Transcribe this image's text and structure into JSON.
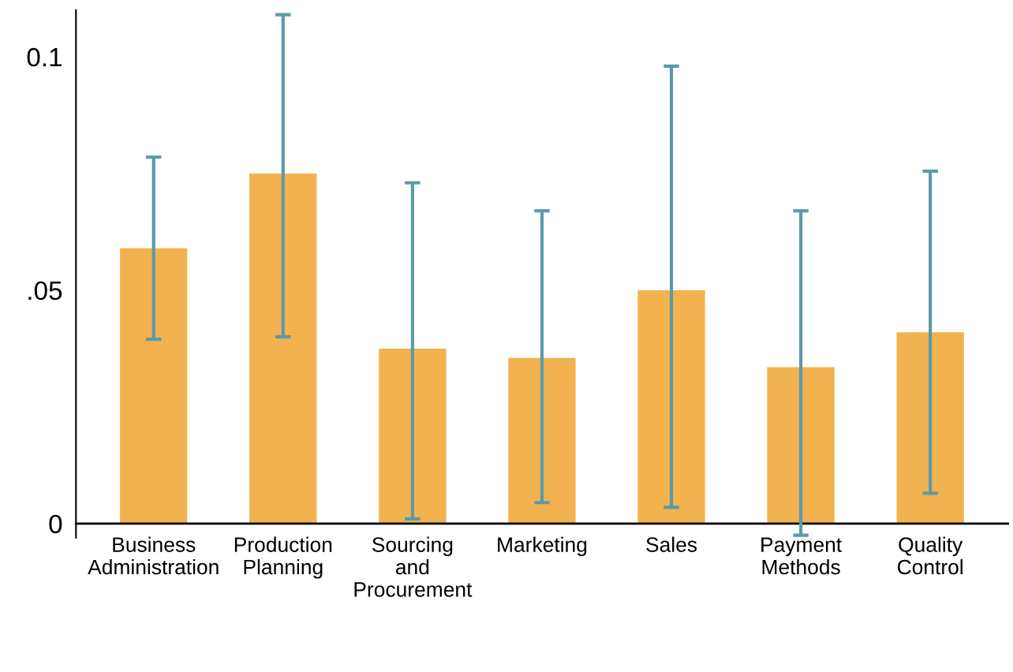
{
  "chart_data": {
    "type": "bar",
    "categories": [
      "Business\nAdministration",
      "Production\nPlanning",
      "Sourcing\nand\nProcurement",
      "Marketing",
      "Sales",
      "Payment\nMethods",
      "Quality\nControl"
    ],
    "values": [
      0.059,
      0.075,
      0.0375,
      0.0355,
      0.05,
      0.0335,
      0.041
    ],
    "errors": [
      [
        0.0395,
        0.0785
      ],
      [
        0.04,
        0.109
      ],
      [
        0.001,
        0.073
      ],
      [
        0.0045,
        0.067
      ],
      [
        0.0035,
        0.098
      ],
      [
        -0.0025,
        0.067
      ],
      [
        0.0065,
        0.0755
      ]
    ],
    "color": "#f2b24f",
    "ylim": [
      -0.003,
      0.11
    ],
    "yticks": [
      0,
      {
        "value": 0.05,
        "label": ".05"
      },
      {
        "value": 0.1,
        "label": "0.1"
      }
    ],
    "grid": false
  }
}
